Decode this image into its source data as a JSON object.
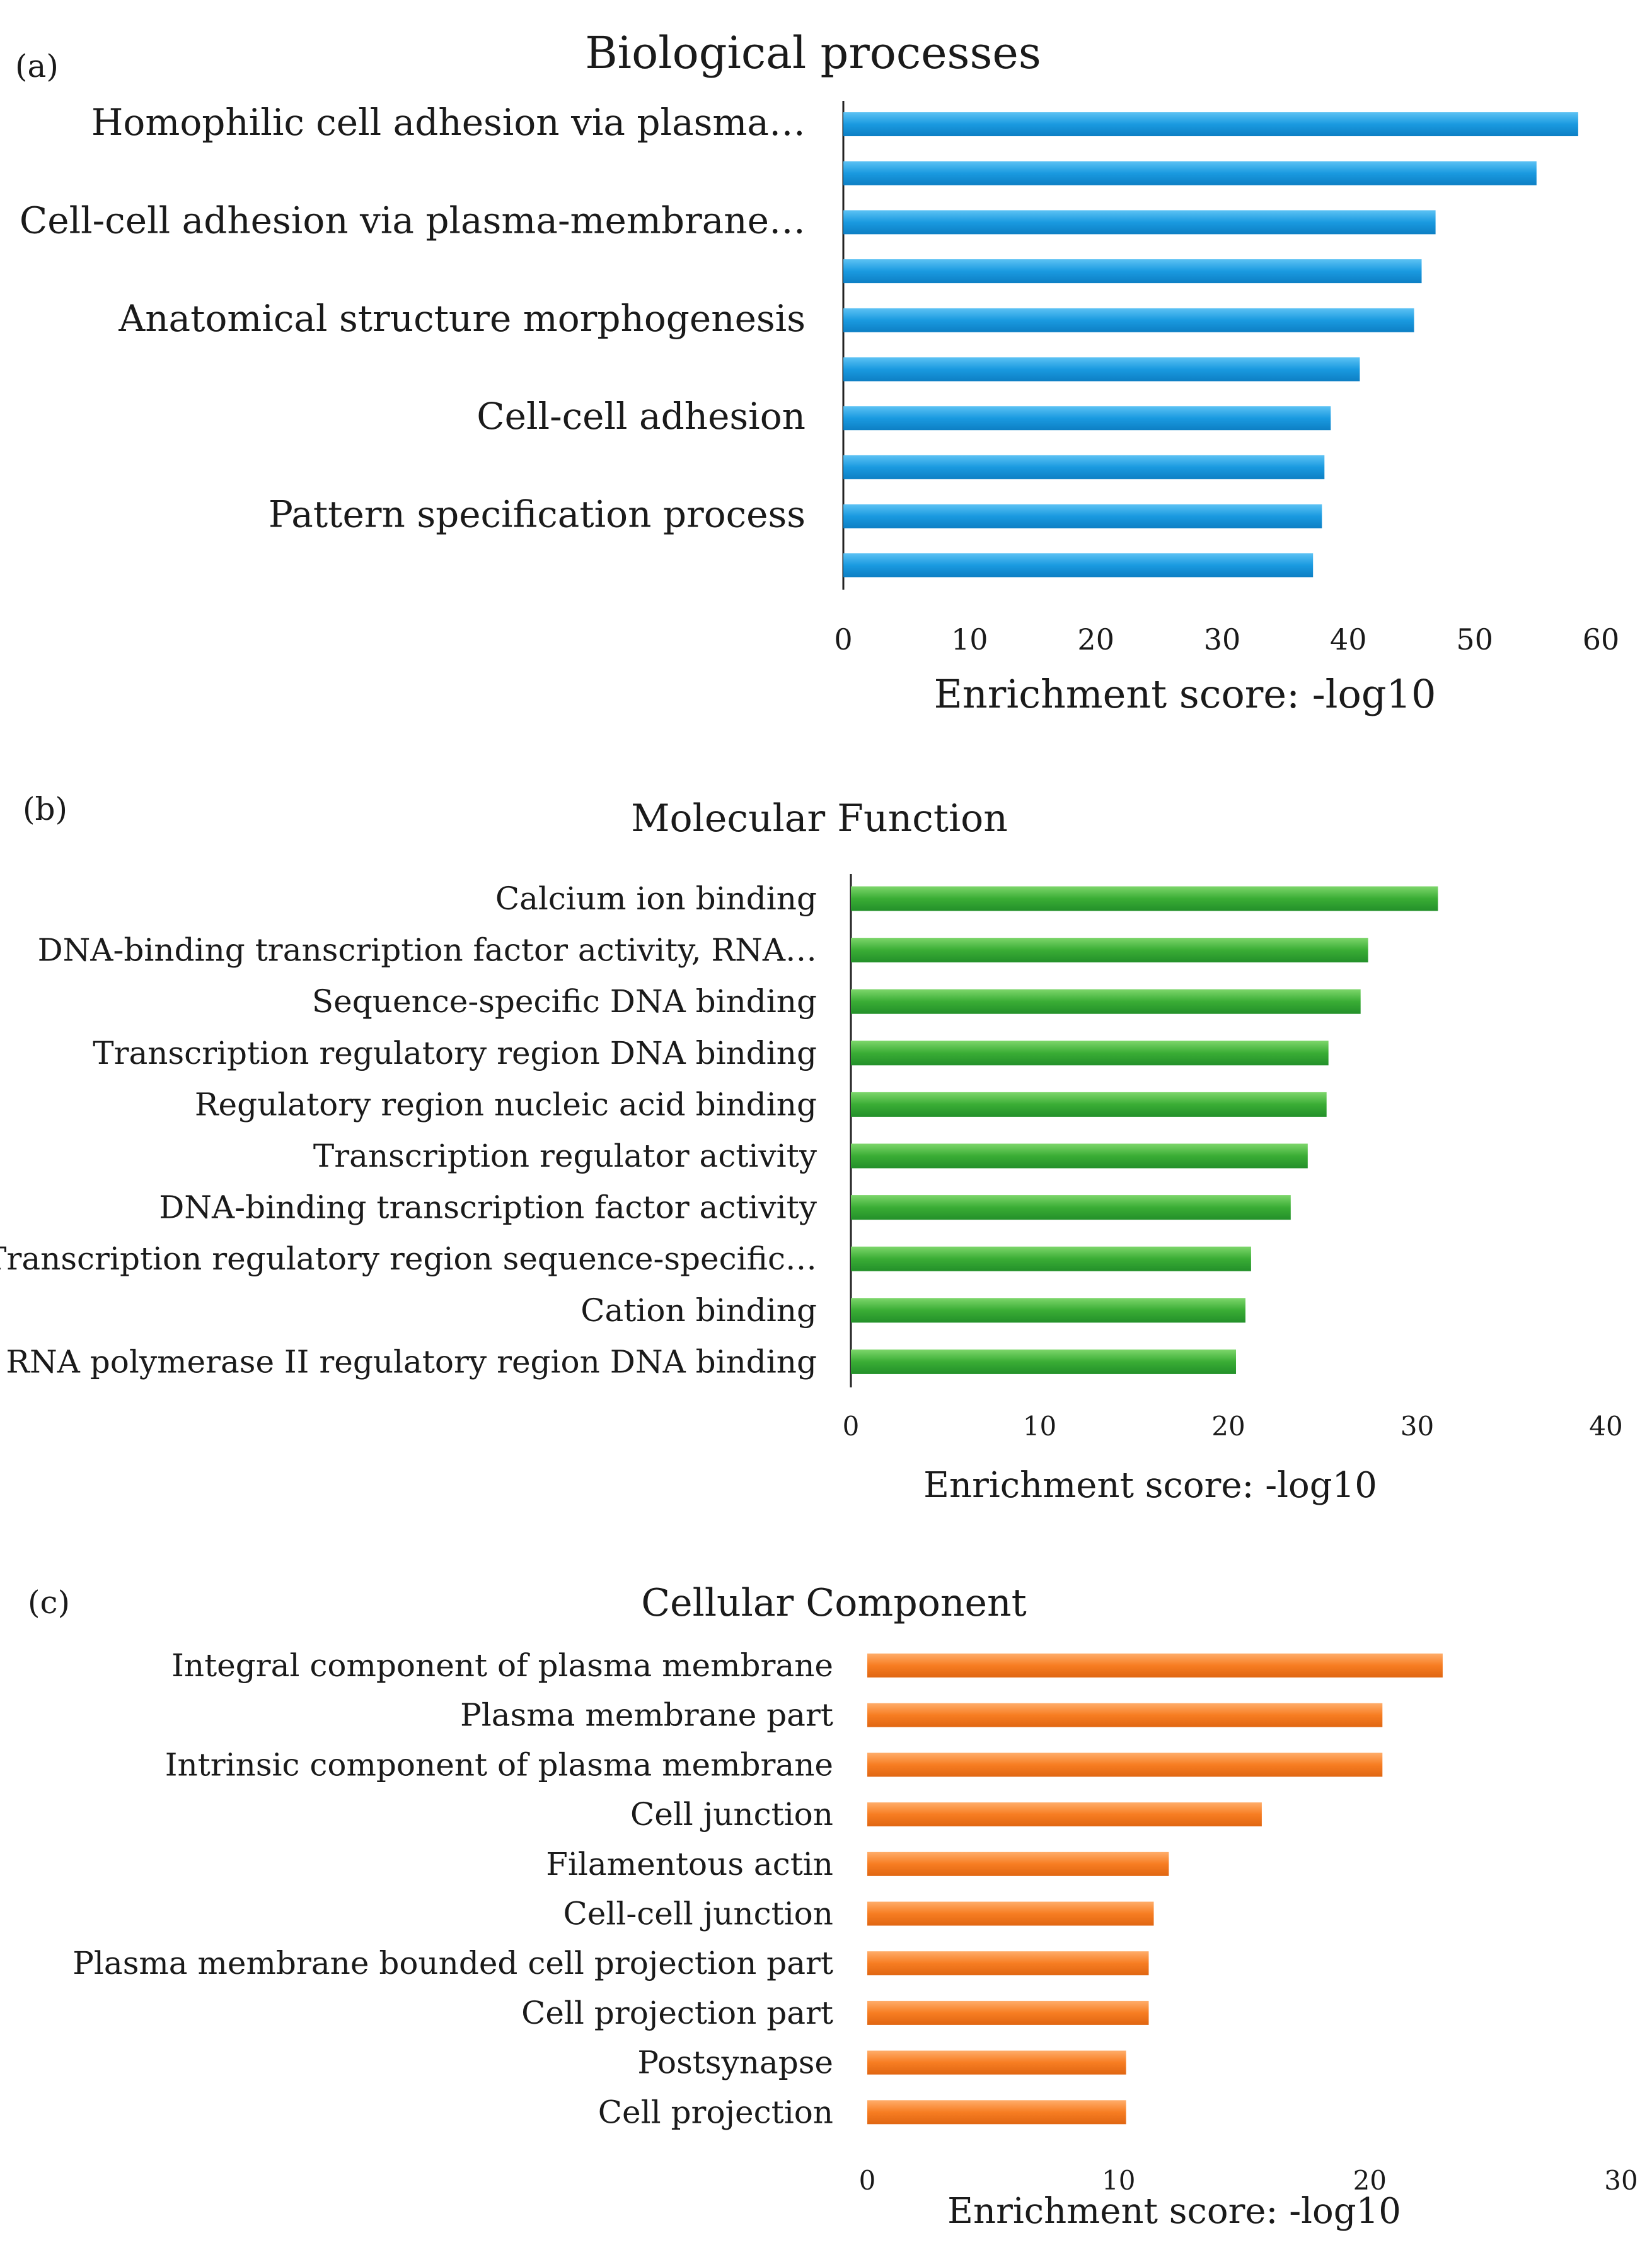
{
  "chart_data": [
    {
      "panel_label": "(a)",
      "type": "bar",
      "orientation": "horizontal",
      "title": "Biological processes",
      "xlabel": "Enrichment score: -log10",
      "ylabel": "",
      "xlim": [
        0,
        60
      ],
      "xticks": [
        0,
        10,
        20,
        30,
        40,
        50,
        60
      ],
      "color": "#1c9be2",
      "categories": [
        "Homophilic cell adhesion via plasma…",
        "",
        "Cell-cell adhesion via plasma-membrane…",
        "",
        "Anatomical structure morphogenesis",
        "",
        "Cell-cell adhesion",
        "",
        "Pattern specification process",
        ""
      ],
      "values": [
        58.2,
        54.9,
        46.9,
        45.8,
        45.2,
        40.9,
        38.6,
        38.1,
        37.9,
        37.2
      ],
      "grid": false,
      "legend": "none"
    },
    {
      "panel_label": "(b)",
      "type": "bar",
      "orientation": "horizontal",
      "title": "Molecular Function",
      "xlabel": "Enrichment score: -log10",
      "ylabel": "",
      "xlim": [
        0,
        40
      ],
      "xticks": [
        0,
        10,
        20,
        30,
        40
      ],
      "color": "#3aad35",
      "categories": [
        "Calcium ion binding",
        "DNA-binding transcription factor activity, RNA…",
        "Sequence-specific DNA binding",
        "Transcription regulatory region DNA binding",
        "Regulatory region nucleic acid binding",
        "Transcription regulator activity",
        "DNA-binding transcription factor activity",
        "Transcription regulatory region sequence-specific…",
        "Cation binding",
        "RNA polymerase II regulatory region DNA binding"
      ],
      "values": [
        31.1,
        27.4,
        27.0,
        25.3,
        25.2,
        24.2,
        23.3,
        21.2,
        20.9,
        20.4
      ],
      "grid": false,
      "legend": "none"
    },
    {
      "panel_label": "(c)",
      "type": "bar",
      "orientation": "horizontal",
      "title": "Cellular Component",
      "xlabel": "Enrichment score: -log10",
      "ylabel": "",
      "xlim": [
        0,
        30
      ],
      "xticks": [
        0,
        10,
        20,
        30
      ],
      "color": "#f77d22",
      "categories": [
        "Integral component of plasma membrane",
        "Plasma membrane part",
        "Intrinsic component of plasma membrane",
        "Cell junction",
        "Filamentous actin",
        "Cell-cell junction",
        "Plasma membrane bounded cell projection part",
        "Cell projection part",
        "Postsynapse",
        "Cell projection"
      ],
      "values": [
        22.9,
        20.5,
        20.5,
        15.7,
        12.0,
        11.4,
        11.2,
        11.2,
        10.3,
        10.3
      ],
      "grid": false,
      "legend": "none"
    }
  ]
}
